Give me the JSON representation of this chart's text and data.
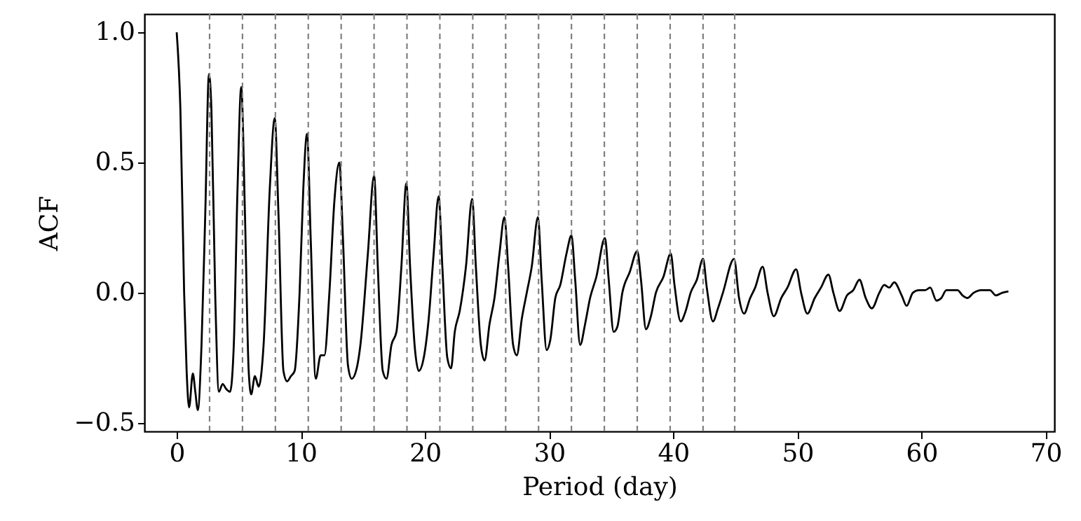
{
  "chart_data": {
    "type": "line",
    "xlabel": "Period (day)",
    "ylabel": "ACF",
    "xlim": [
      -2.6,
      70.7
    ],
    "ylim": [
      -0.532,
      1.07
    ],
    "xticks": [
      0,
      10,
      20,
      30,
      40,
      50,
      60,
      70
    ],
    "yticks": [
      {
        "value": -0.5,
        "label": "−0.5"
      },
      {
        "value": 0,
        "label": "0.0"
      },
      {
        "value": 0.5,
        "label": "0.5"
      },
      {
        "value": 1.0,
        "label": "1.0"
      }
    ],
    "grid": false,
    "marker": "none",
    "line_style": "solid",
    "series": [
      {
        "color": "#000000",
        "x": [
          0,
          0.3,
          0.6,
          0.8,
          1.0,
          1.3,
          1.5,
          1.7,
          2.0,
          2.3,
          2.6,
          2.8,
          3.1,
          3.4,
          3.7,
          4.0,
          4.3,
          4.6,
          4.9,
          5.2,
          5.5,
          5.8,
          6.0,
          6.3,
          6.6,
          7.0,
          7.5,
          7.9,
          8.2,
          8.6,
          8.9,
          9.2,
          9.5,
          9.9,
          10.2,
          10.5,
          10.8,
          11.2,
          11.6,
          11.9,
          12.3,
          12.7,
          13.1,
          13.4,
          13.8,
          14.1,
          14.5,
          14.8,
          15.4,
          15.9,
          16.2,
          16.6,
          16.9,
          17.3,
          17.7,
          18.1,
          18.5,
          18.8,
          19.2,
          19.5,
          19.9,
          20.3,
          20.7,
          21.1,
          21.4,
          21.8,
          22.1,
          22.4,
          22.8,
          23.3,
          23.8,
          24.1,
          24.5,
          24.8,
          25.2,
          25.6,
          26.0,
          26.4,
          26.7,
          27.1,
          27.4,
          27.8,
          28.2,
          28.6,
          29.1,
          29.4,
          29.8,
          30.1,
          30.5,
          30.9,
          31.4,
          31.8,
          32.1,
          32.5,
          32.9,
          33.3,
          33.8,
          34.5,
          34.8,
          35.2,
          35.5,
          35.9,
          36.5,
          37.1,
          37.4,
          37.8,
          38.2,
          38.6,
          39.2,
          39.8,
          40.1,
          40.6,
          41.0,
          41.4,
          41.9,
          42.4,
          42.7,
          43.2,
          43.6,
          44.0,
          44.9,
          45.3,
          45.7,
          46.2,
          46.6,
          47.2,
          47.6,
          48.1,
          48.7,
          49.2,
          49.9,
          50.3,
          50.8,
          51.4,
          51.9,
          52.5,
          52.9,
          53.4,
          54.0,
          54.5,
          55.0,
          55.5,
          56.0,
          56.6,
          57.0,
          57.4,
          57.8,
          58.4,
          58.8,
          59.3,
          59.8,
          60.3,
          60.7,
          61.2,
          61.6,
          62.0,
          62.5,
          62.9,
          63.3,
          63.7,
          64.2,
          64.8,
          65.5,
          66.0,
          66.5,
          67.0
        ],
        "values": [
          1.0,
          0.7,
          0.0,
          -0.3,
          -0.44,
          -0.31,
          -0.38,
          -0.45,
          -0.2,
          0.3,
          0.84,
          0.7,
          0.0,
          -0.38,
          -0.35,
          -0.37,
          -0.38,
          -0.2,
          0.4,
          0.79,
          0.3,
          -0.3,
          -0.39,
          -0.32,
          -0.36,
          -0.2,
          0.4,
          0.67,
          0.3,
          -0.3,
          -0.34,
          -0.32,
          -0.3,
          0.0,
          0.4,
          0.61,
          0.2,
          -0.33,
          -0.24,
          -0.24,
          0.0,
          0.35,
          0.5,
          0.2,
          -0.28,
          -0.33,
          -0.29,
          -0.2,
          0.15,
          0.45,
          0.1,
          -0.3,
          -0.33,
          -0.2,
          -0.15,
          0.1,
          0.42,
          0.1,
          -0.22,
          -0.3,
          -0.25,
          -0.1,
          0.15,
          0.37,
          0.1,
          -0.25,
          -0.29,
          -0.15,
          -0.07,
          0.1,
          0.36,
          0.1,
          -0.2,
          -0.26,
          -0.12,
          -0.02,
          0.15,
          0.29,
          0.1,
          -0.2,
          -0.24,
          -0.1,
          0.0,
          0.1,
          0.29,
          0.05,
          -0.22,
          -0.18,
          -0.02,
          0.03,
          0.15,
          0.22,
          0.05,
          -0.2,
          -0.12,
          -0.02,
          0.06,
          0.21,
          0.05,
          -0.15,
          -0.13,
          0.0,
          0.08,
          0.16,
          0.05,
          -0.14,
          -0.09,
          0.0,
          0.06,
          0.15,
          0.03,
          -0.11,
          -0.07,
          0.0,
          0.05,
          0.13,
          0.02,
          -0.11,
          -0.06,
          0.0,
          0.13,
          -0.02,
          -0.08,
          -0.02,
          0.02,
          0.1,
          0.0,
          -0.09,
          -0.02,
          0.02,
          0.09,
          0.0,
          -0.08,
          -0.02,
          0.02,
          0.07,
          0.0,
          -0.07,
          -0.01,
          0.01,
          0.05,
          -0.02,
          -0.06,
          0.0,
          0.03,
          0.02,
          0.04,
          -0.01,
          -0.05,
          0.0,
          0.01,
          0.01,
          0.02,
          -0.03,
          -0.02,
          0.01,
          0.01,
          0.01,
          -0.01,
          -0.02,
          0.0,
          0.01,
          0.01,
          -0.01,
          0.0,
          0.005
        ]
      }
    ],
    "ref_lines": [
      {
        "axis": "x",
        "value": 2.65,
        "color": "#808080",
        "line_style": "dashed"
      },
      {
        "axis": "x",
        "value": 5.3,
        "color": "#808080",
        "line_style": "dashed"
      },
      {
        "axis": "x",
        "value": 7.95,
        "color": "#808080",
        "line_style": "dashed"
      },
      {
        "axis": "x",
        "value": 10.6,
        "color": "#808080",
        "line_style": "dashed"
      },
      {
        "axis": "x",
        "value": 13.25,
        "color": "#808080",
        "line_style": "dashed"
      },
      {
        "axis": "x",
        "value": 15.9,
        "color": "#808080",
        "line_style": "dashed"
      },
      {
        "axis": "x",
        "value": 18.55,
        "color": "#808080",
        "line_style": "dashed"
      },
      {
        "axis": "x",
        "value": 21.2,
        "color": "#808080",
        "line_style": "dashed"
      },
      {
        "axis": "x",
        "value": 23.85,
        "color": "#808080",
        "line_style": "dashed"
      },
      {
        "axis": "x",
        "value": 26.5,
        "color": "#808080",
        "line_style": "dashed"
      },
      {
        "axis": "x",
        "value": 29.15,
        "color": "#808080",
        "line_style": "dashed"
      },
      {
        "axis": "x",
        "value": 31.8,
        "color": "#808080",
        "line_style": "dashed"
      },
      {
        "axis": "x",
        "value": 34.45,
        "color": "#808080",
        "line_style": "dashed"
      },
      {
        "axis": "x",
        "value": 37.1,
        "color": "#808080",
        "line_style": "dashed"
      },
      {
        "axis": "x",
        "value": 39.75,
        "color": "#808080",
        "line_style": "dashed"
      },
      {
        "axis": "x",
        "value": 42.4,
        "color": "#808080",
        "line_style": "dashed"
      },
      {
        "axis": "x",
        "value": 44.95,
        "color": "#808080",
        "line_style": "dashed"
      }
    ]
  }
}
